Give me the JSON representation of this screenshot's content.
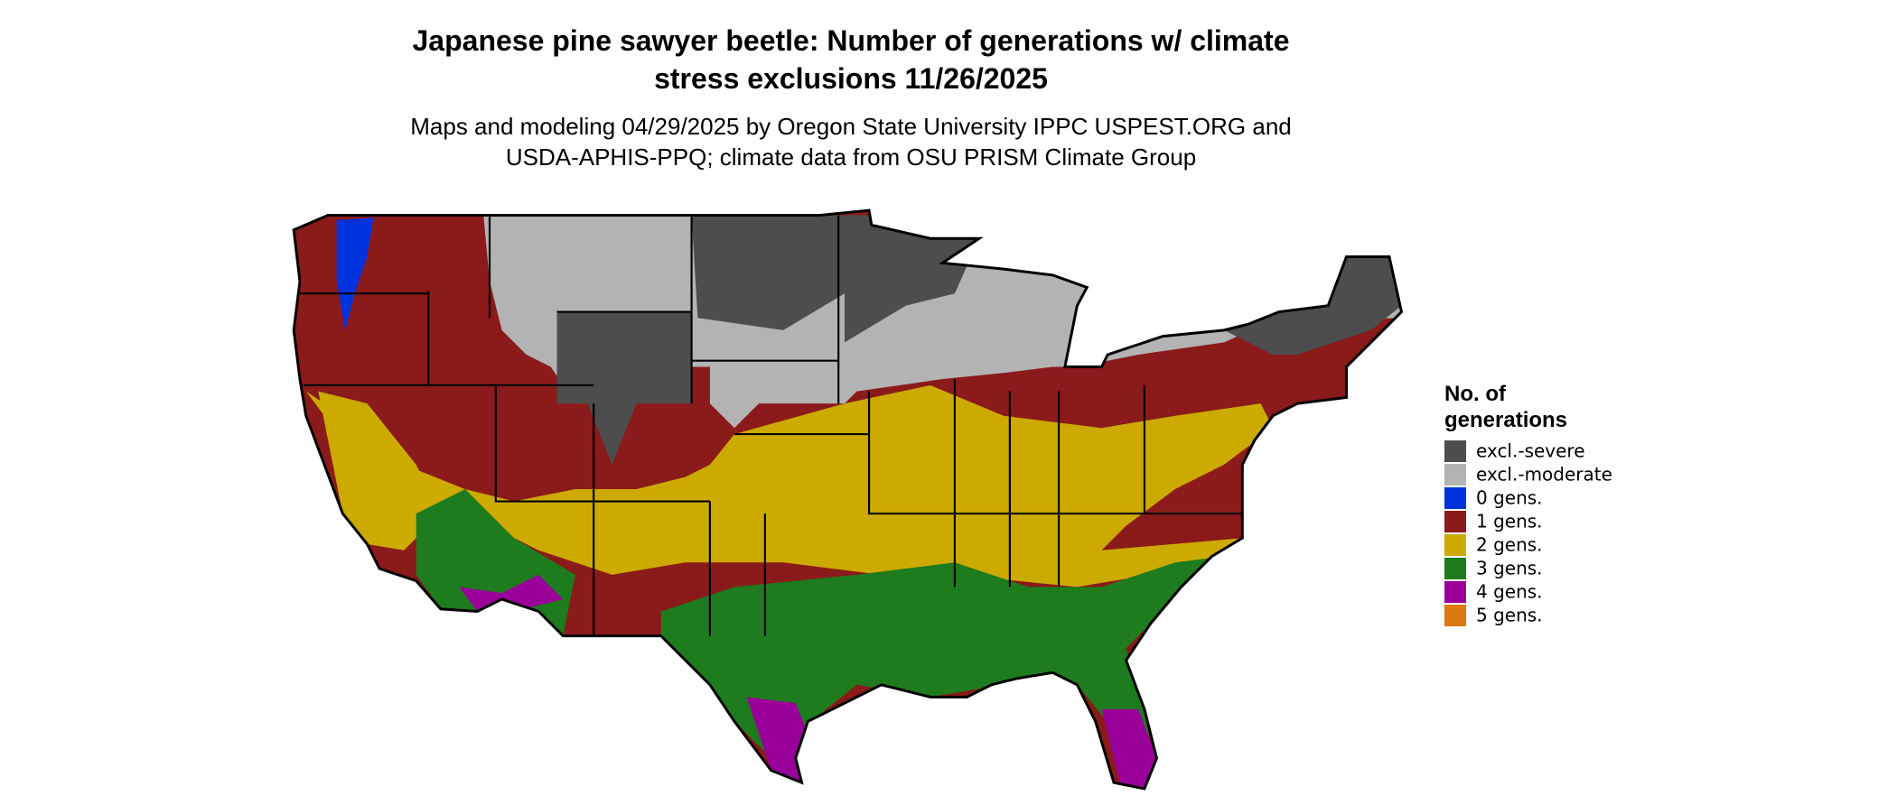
{
  "header": {
    "title_lines": [
      "Japanese pine sawyer beetle: Number of generations w/ climate",
      "stress exclusions 11/26/2025"
    ],
    "subtitle_lines": [
      "Maps and modeling 04/29/2025 by Oregon State University IPPC USPEST.ORG and",
      "USDA-APHIS-PPQ; climate data from OSU PRISM Climate Group"
    ]
  },
  "legend": {
    "title_lines": [
      "No. of",
      "generations"
    ],
    "items": [
      {
        "label": "excl.-severe",
        "color": "#4d4d4d"
      },
      {
        "label": "excl.-moderate",
        "color": "#b3b3b3"
      },
      {
        "label": "0 gens.",
        "color": "#0033dd"
      },
      {
        "label": "1 gens.",
        "color": "#8b1a1a"
      },
      {
        "label": "2 gens.",
        "color": "#ccaa00"
      },
      {
        "label": "3 gens.",
        "color": "#1e7b1e"
      },
      {
        "label": "4 gens.",
        "color": "#990099"
      },
      {
        "label": "5 gens.",
        "color": "#dd7711"
      }
    ]
  }
}
